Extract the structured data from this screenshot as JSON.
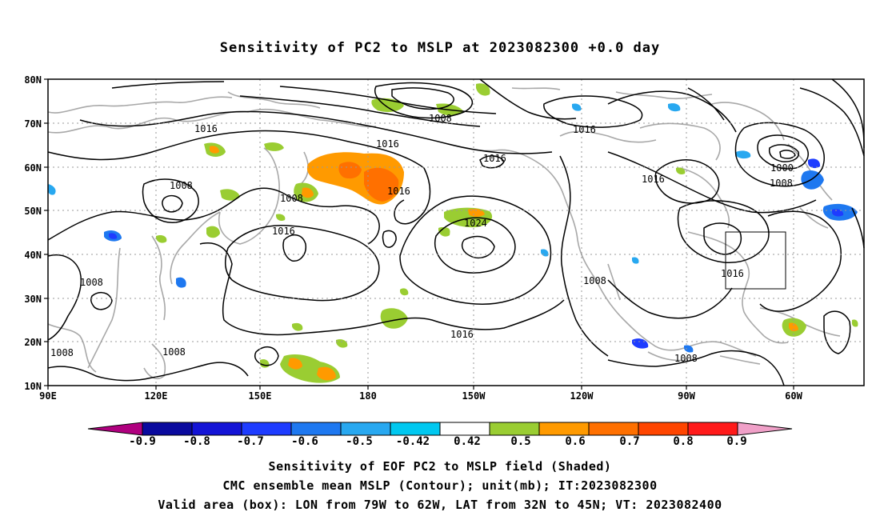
{
  "title": "Sensitivity of PC2 to MSLP at 2023082300 +0.0 day",
  "map": {
    "lat_labels": [
      "80N",
      "70N",
      "60N",
      "50N",
      "40N",
      "30N",
      "20N",
      "10N"
    ],
    "lon_labels": [
      "90E",
      "120E",
      "150E",
      "180",
      "150W",
      "120W",
      "90W",
      "60W"
    ],
    "contour_unit": "mb",
    "contour_labels": [
      "1016",
      "1008",
      "1016",
      "1016",
      "1016",
      "1016",
      "1000",
      "1008",
      "1008",
      "1008",
      "1024",
      "1016",
      "1008",
      "1016",
      "1008",
      "1016",
      "1008",
      "1008",
      "1008",
      "1016"
    ],
    "box": {
      "lon_from": "79W",
      "lon_to": "62W",
      "lat_from": "32N",
      "lat_to": "45N"
    }
  },
  "colorbar": {
    "labels": [
      "-0.9",
      "-0.8",
      "-0.7",
      "-0.6",
      "-0.5",
      "-0.42",
      "0.42",
      "0.5",
      "0.6",
      "0.7",
      "0.8",
      "0.9"
    ],
    "colors": [
      "#b0007f",
      "#0a0a9e",
      "#1414d6",
      "#1e3cff",
      "#1e78f0",
      "#28a8f0",
      "#00c8f0",
      "#ffffff",
      "#9acd32",
      "#ff9a00",
      "#ff7000",
      "#ff4500",
      "#ff1a1a",
      "#f0a0c8"
    ]
  },
  "captions": [
    "Sensitivity of EOF PC2 to MSLP field (Shaded)",
    "CMC ensemble mean MSLP (Contour); unit(mb); IT:2023082300",
    "Valid area (box): LON from 79W to 62W, LAT from 32N to 45N; VT: 2023082400"
  ]
}
